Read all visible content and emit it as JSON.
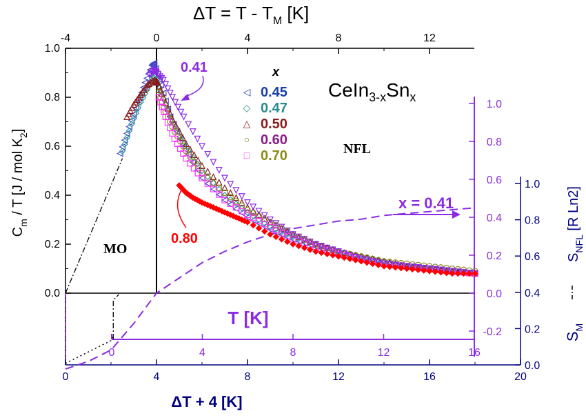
{
  "chart_data": {
    "type": "scatter",
    "axes": {
      "bottom": {
        "label": "ΔT + 4  [K]",
        "range": [
          0,
          20
        ],
        "ticks": [
          "0",
          "4",
          "8",
          "12",
          "16",
          "20"
        ],
        "color": "#000080"
      },
      "top": {
        "label_parts": [
          "ΔT = T - T",
          "M",
          " [K]"
        ],
        "range": [
          -4,
          16
        ],
        "ticks": [
          "-4",
          "0",
          "4",
          "8",
          "12"
        ]
      },
      "left": {
        "label_parts": [
          "C",
          "m",
          " / T [J / mol K",
          "2",
          "]"
        ],
        "range": [
          0,
          1.0
        ],
        "ticks": [
          "0.0",
          "0.2",
          "0.4",
          "0.6",
          "0.8",
          "1.0"
        ]
      },
      "right_inner": {
        "range": [
          -0.3,
          1.1
        ],
        "ticks": [
          "-0.2",
          "0.0",
          "0.2",
          "0.4",
          "0.6",
          "0.8",
          "1.0"
        ],
        "color": "#8a2be2"
      },
      "inner_bottom": {
        "label": "T  [K]",
        "range": [
          0,
          16
        ],
        "ticks": [
          "0",
          "4",
          "8",
          "12",
          "16"
        ],
        "color": "#8a2be2"
      },
      "right_outer": {
        "label_top_parts": [
          "S",
          "NFL",
          " [R Ln2]"
        ],
        "label_bottom_parts": [
          "S",
          "M"
        ],
        "range": [
          0,
          1.0
        ],
        "ticks": [
          "0.0",
          "0.2",
          "0.4",
          "0.6",
          "0.8",
          "1.0"
        ],
        "color": "#000080"
      }
    },
    "title": "CeIn3-xSnx",
    "title_parts": [
      "CeIn",
      "3-x",
      "Sn",
      "x"
    ],
    "legend": {
      "header": "x",
      "entries": [
        {
          "label": "0.45",
          "marker": "◁",
          "color": "#1a3ea8"
        },
        {
          "label": "0.47",
          "marker": "◇",
          "color": "#2a8c8c"
        },
        {
          "label": "0.50",
          "marker": "△",
          "color": "#8b1a1a"
        },
        {
          "label": "0.60",
          "marker": "○",
          "color": "#7a7a10"
        },
        {
          "label": "0.70",
          "marker": "□",
          "color": "#ff33ff"
        }
      ],
      "label_colors": [
        "#1a3ea8",
        "#2a8c8c",
        "#8b1a1a",
        "#8b1a8b",
        "#8b8b1a"
      ],
      "placement": "upper-center"
    },
    "annotations": {
      "x041_label": "0.41",
      "x080_label": "0.80",
      "nfl": "NFL",
      "mo": "MO",
      "x_eq": "x = 0.41"
    },
    "series": [
      {
        "name": "0.45",
        "color": "#4444cc",
        "marker": "triangle-left",
        "x": [
          2.4,
          2.8,
          3.2,
          3.5,
          3.8,
          3.9,
          4.2,
          4.6,
          5.2,
          6,
          7,
          8,
          9,
          10,
          11,
          12,
          13,
          14,
          15,
          16,
          17,
          18
        ],
        "y": [
          0.57,
          0.68,
          0.78,
          0.86,
          0.93,
          0.94,
          0.85,
          0.72,
          0.6,
          0.47,
          0.38,
          0.31,
          0.26,
          0.22,
          0.19,
          0.16,
          0.14,
          0.12,
          0.11,
          0.1,
          0.09,
          0.08
        ]
      },
      {
        "name": "0.47",
        "color": "#2a9a9a",
        "marker": "diamond",
        "x": [
          2.5,
          2.9,
          3.3,
          3.7,
          3.95,
          4.2,
          4.6,
          5.2,
          6,
          7,
          8,
          9,
          10,
          11,
          12,
          13,
          14,
          15,
          16,
          17,
          18
        ],
        "y": [
          0.58,
          0.69,
          0.78,
          0.85,
          0.89,
          0.82,
          0.72,
          0.61,
          0.5,
          0.4,
          0.33,
          0.27,
          0.23,
          0.2,
          0.17,
          0.15,
          0.13,
          0.11,
          0.1,
          0.09,
          0.08
        ]
      },
      {
        "name": "0.50",
        "color": "#8b1a1a",
        "marker": "triangle-up",
        "x": [
          2.7,
          3.0,
          3.3,
          3.6,
          3.9,
          4.05,
          4.3,
          4.7,
          5.3,
          6,
          7,
          8,
          9,
          10,
          11,
          12,
          13,
          14,
          15,
          16,
          17,
          18
        ],
        "y": [
          0.72,
          0.77,
          0.81,
          0.85,
          0.87,
          0.86,
          0.8,
          0.71,
          0.61,
          0.52,
          0.43,
          0.35,
          0.29,
          0.24,
          0.2,
          0.17,
          0.15,
          0.13,
          0.11,
          0.1,
          0.09,
          0.08
        ]
      },
      {
        "name": "0.60",
        "color": "#8b8b1a",
        "marker": "circle",
        "x": [
          4.1,
          4.4,
          4.8,
          5.3,
          6,
          7,
          8,
          9,
          10,
          11,
          12,
          13,
          14,
          15,
          16,
          17,
          18
        ],
        "y": [
          0.82,
          0.74,
          0.66,
          0.58,
          0.49,
          0.41,
          0.34,
          0.29,
          0.24,
          0.2,
          0.17,
          0.15,
          0.13,
          0.12,
          0.11,
          0.1,
          0.09
        ]
      },
      {
        "name": "0.70",
        "color": "#ff33ff",
        "marker": "square",
        "x": [
          4.1,
          4.4,
          4.8,
          5.3,
          6,
          7,
          8,
          9,
          10,
          11,
          12,
          13,
          14,
          15,
          16,
          17,
          18
        ],
        "y": [
          0.8,
          0.72,
          0.63,
          0.55,
          0.47,
          0.38,
          0.32,
          0.27,
          0.22,
          0.19,
          0.16,
          0.14,
          0.12,
          0.11,
          0.1,
          0.09,
          0.08
        ]
      },
      {
        "name": "0.41",
        "color": "#8a2be2",
        "marker": "triangle-down",
        "x": [
          3.7,
          3.9,
          4.0,
          4.3,
          4.7,
          5.2,
          6,
          7,
          8,
          9,
          10,
          11,
          12,
          13,
          14,
          15,
          16,
          17,
          18
        ],
        "y": [
          0.89,
          0.91,
          0.9,
          0.87,
          0.8,
          0.72,
          0.6,
          0.47,
          0.37,
          0.3,
          0.24,
          0.2,
          0.17,
          0.14,
          0.12,
          0.11,
          0.1,
          0.09,
          0.08
        ]
      },
      {
        "name": "0.80",
        "color": "#ff0000",
        "marker": "diamond-filled",
        "x": [
          5.0,
          5.3,
          5.6,
          6,
          6.5,
          7,
          7.5,
          8,
          9,
          10,
          11,
          12,
          13,
          14,
          15,
          16,
          17,
          18
        ],
        "y": [
          0.44,
          0.41,
          0.39,
          0.37,
          0.35,
          0.33,
          0.31,
          0.29,
          0.24,
          0.2,
          0.17,
          0.15,
          0.13,
          0.11,
          0.1,
          0.09,
          0.08,
          0.08
        ]
      }
    ],
    "curves": {
      "s_nfl_dashed": {
        "color": "#8a2be2",
        "x": [
          0,
          1,
          2,
          3,
          4,
          5,
          6,
          7,
          8,
          9,
          10,
          11,
          12,
          13,
          14,
          15,
          16,
          17,
          18
        ],
        "y": [
          -0.4,
          -0.36,
          -0.3,
          -0.16,
          0.0,
          0.08,
          0.16,
          0.22,
          0.27,
          0.31,
          0.34,
          0.36,
          0.38,
          0.39,
          0.41,
          0.42,
          0.43,
          0.44,
          0.45
        ]
      },
      "c_mo_dashdot": {
        "color": "#000000",
        "x": [
          0,
          0.5,
          1.0,
          1.5,
          2.0,
          2.5
        ],
        "y": [
          0.0,
          0.11,
          0.22,
          0.33,
          0.44,
          0.55
        ]
      },
      "s_m_dotted": {
        "color": "#000000",
        "x": [
          0,
          0.5,
          1.0,
          1.5,
          2.0,
          2.1
        ],
        "y": [
          -0.37,
          -0.34,
          -0.31,
          -0.28,
          -0.25,
          -0.23
        ]
      }
    }
  }
}
